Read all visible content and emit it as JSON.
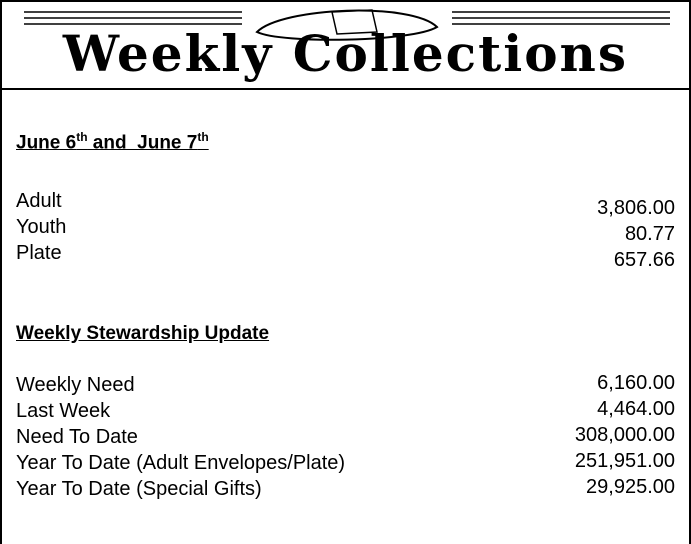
{
  "header": {
    "title": "Weekly Collections"
  },
  "collections": {
    "heading": [
      "June 6",
      "th",
      " and  June 7",
      "th"
    ],
    "rows": [
      {
        "label": "Adult",
        "amount": "3,806.00"
      },
      {
        "label": "Youth",
        "amount": "80.77"
      },
      {
        "label": "Plate",
        "amount": "657.66"
      }
    ]
  },
  "stewardship": {
    "heading": "Weekly Stewardship Update",
    "rows": [
      {
        "label": "Weekly Need",
        "amount": "6,160.00"
      },
      {
        "label": "Last Week",
        "amount": "4,464.00"
      },
      {
        "label": "Need To Date",
        "amount": "308,000.00"
      },
      {
        "label": "Year To Date (Adult Envelopes/Plate)",
        "amount": "251,951.00"
      },
      {
        "label": "Year To Date (Special Gifts)",
        "amount": "29,925.00"
      }
    ]
  }
}
